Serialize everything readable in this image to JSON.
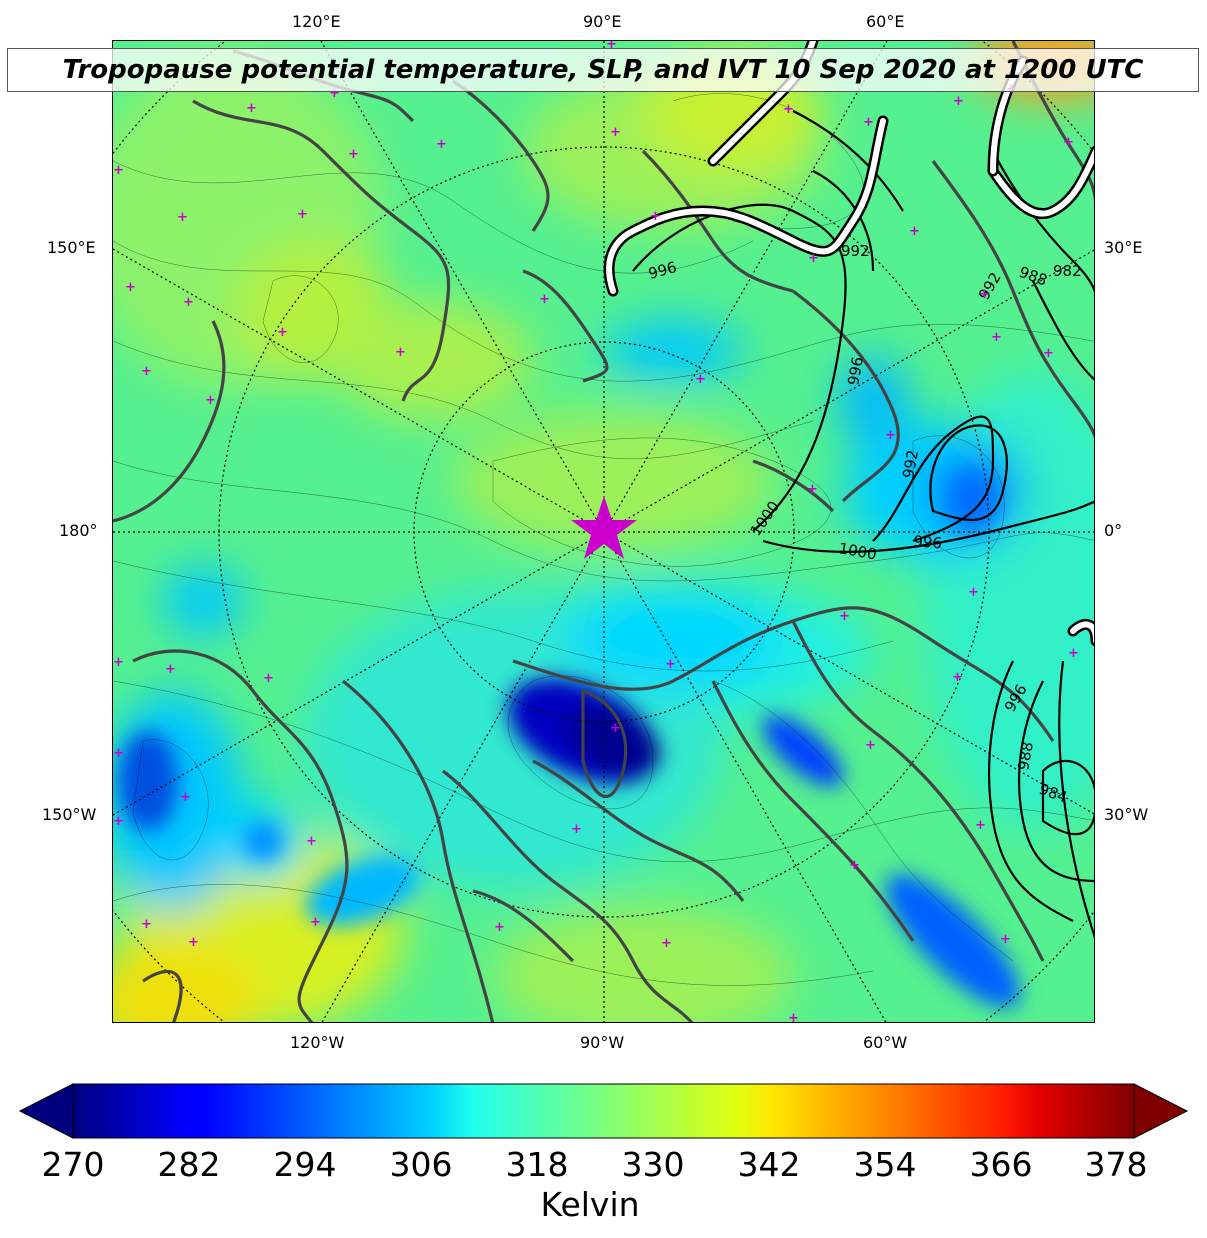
{
  "title": "Tropopause potential temperature, SLP, and IVT 10 Sep 2020 at 1200 UTC",
  "longitude_labels": {
    "top": [
      "120°E",
      "90°E",
      "60°E"
    ],
    "bottom": [
      "120°W",
      "90°W",
      "60°W"
    ],
    "left": [
      "150°E",
      "180°",
      "150°W"
    ],
    "right": [
      "30°E",
      "0°",
      "30°W"
    ]
  },
  "slp_contour_labels": [
    "996",
    "992",
    "988",
    "992",
    "982",
    "996",
    "992",
    "1000",
    "1000",
    "996",
    "996",
    "988",
    "984"
  ],
  "colorbar": {
    "ticks": [
      "270",
      "282",
      "294",
      "306",
      "318",
      "330",
      "342",
      "354",
      "366",
      "378"
    ],
    "unit": "Kelvin",
    "colormap": "jet",
    "min": 270,
    "max": 378,
    "extend": "both"
  },
  "colors": {
    "coastline": "#444444",
    "marker": "#cc00cc",
    "slp_contour": "#000000",
    "ivt_contour": "#ffffff"
  }
}
